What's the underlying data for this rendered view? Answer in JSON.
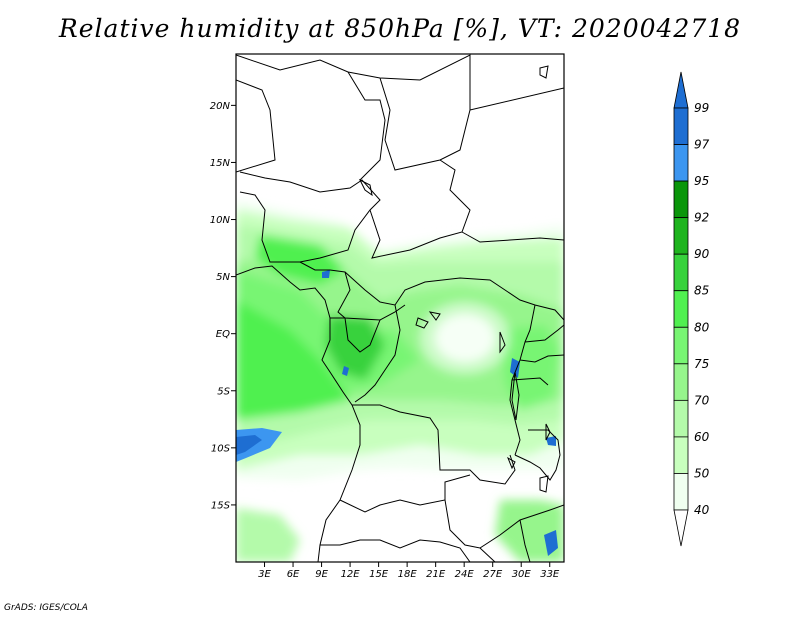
{
  "title": "Relative humidity at 850hPa [%], VT: 2020042718",
  "footer": "GrADS: IGES/COLA",
  "map": {
    "lat_range": [
      -20,
      24.5
    ],
    "lon_range": [
      0,
      34.5
    ],
    "lat_ticks": [
      {
        "value": 20,
        "label": "20N"
      },
      {
        "value": 15,
        "label": "15N"
      },
      {
        "value": 10,
        "label": "10N"
      },
      {
        "value": 5,
        "label": "5N"
      },
      {
        "value": 0,
        "label": "EQ"
      },
      {
        "value": -5,
        "label": "5S"
      },
      {
        "value": -10,
        "label": "10S"
      },
      {
        "value": -15,
        "label": "15S"
      }
    ],
    "lon_ticks": [
      {
        "value": 3,
        "label": "3E"
      },
      {
        "value": 6,
        "label": "6E"
      },
      {
        "value": 9,
        "label": "9E"
      },
      {
        "value": 12,
        "label": "12E"
      },
      {
        "value": 15,
        "label": "15E"
      },
      {
        "value": 18,
        "label": "18E"
      },
      {
        "value": 21,
        "label": "21E"
      },
      {
        "value": 24,
        "label": "24E"
      },
      {
        "value": 27,
        "label": "27E"
      },
      {
        "value": 30,
        "label": "30E"
      },
      {
        "value": 33,
        "label": "33E"
      }
    ]
  },
  "colorbar": {
    "levels": [
      "99",
      "97",
      "95",
      "92",
      "90",
      "85",
      "80",
      "75",
      "70",
      "60",
      "50",
      "40"
    ],
    "colors": [
      "#1e6ed2",
      "#1e6ed2",
      "#3c96f0",
      "#0a960a",
      "#1eb41e",
      "#37d23c",
      "#50f050",
      "#78f573",
      "#96f58c",
      "#b4faaa",
      "#c8ffbe",
      "#f0fff0",
      "#ffffff"
    ]
  }
}
